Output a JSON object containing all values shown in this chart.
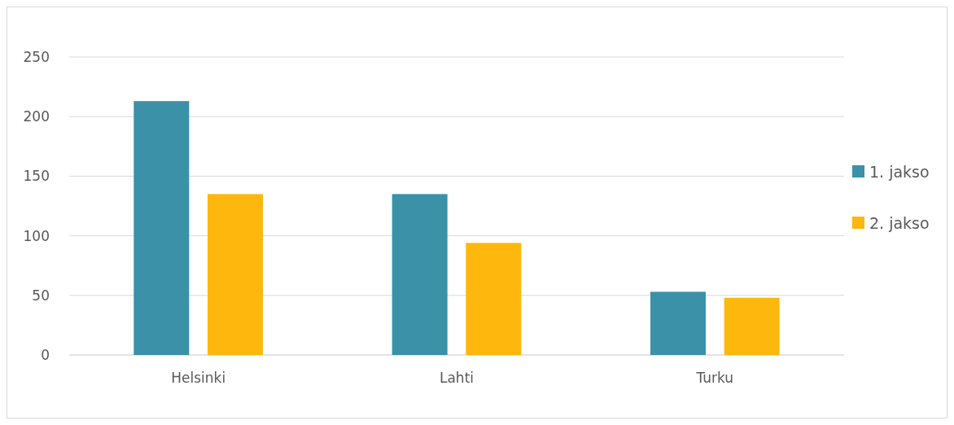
{
  "chart_data": {
    "type": "bar",
    "categories": [
      "Helsinki",
      "Lahti",
      "Turku"
    ],
    "series": [
      {
        "name": "1. jakso",
        "color": "#3a91a8",
        "values": [
          213,
          135,
          53
        ]
      },
      {
        "name": "2. jakso",
        "color": "#fdb70d",
        "values": [
          135,
          94,
          48
        ]
      }
    ],
    "ylim": [
      0,
      250
    ],
    "yticks": [
      0,
      50,
      100,
      150,
      200,
      250
    ],
    "grid": "y",
    "legend": "right"
  }
}
